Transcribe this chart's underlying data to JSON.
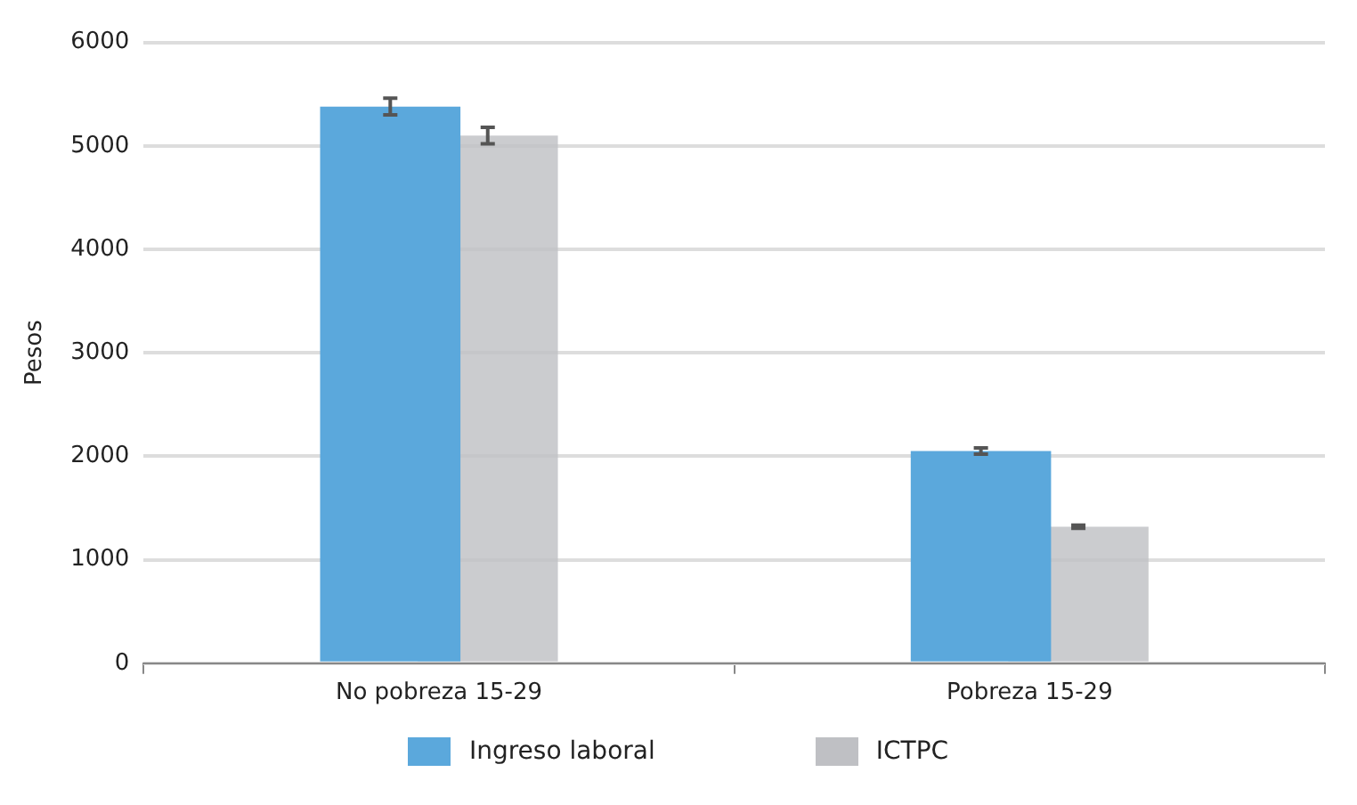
{
  "chart_data": {
    "type": "bar",
    "ylabel": "Pesos",
    "categories": [
      "No pobreza 15-29",
      "Pobreza 15-29"
    ],
    "series": [
      {
        "name": "Ingreso laboral",
        "color": "#5ba8dc",
        "values": [
          5380,
          2050
        ],
        "errors": [
          80,
          30
        ]
      },
      {
        "name": "ICTPC",
        "color": "#bfc0c4",
        "values": [
          5100,
          1320
        ],
        "errors": [
          80,
          15
        ]
      }
    ],
    "ylim": [
      0,
      6000
    ],
    "yticks": [
      0,
      1000,
      2000,
      3000,
      4000,
      5000,
      6000
    ],
    "grid": "y",
    "legend": "bottom"
  }
}
